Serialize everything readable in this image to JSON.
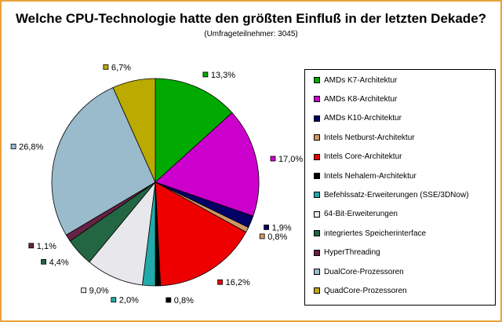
{
  "title": "Welche CPU-Technologie hatte den größten Einfluß in der letzten Dekade?",
  "subtitle": "(Umfrageteilnehmer: 3045)",
  "chart_data": {
    "type": "pie",
    "title": "Welche CPU-Technologie hatte den größten Einfluß in der letzten Dekade?",
    "subtitle": "(Umfrageteilnehmer: 3045)",
    "legend_position": "right",
    "slices": [
      {
        "name": "AMDs K7-Architektur",
        "value": 13.3,
        "label": "13,3%",
        "color": "#00aa00"
      },
      {
        "name": "AMDs K8-Architektur",
        "value": 17.0,
        "label": "17,0%",
        "color": "#cc00cc"
      },
      {
        "name": "AMDs K10-Architektur",
        "value": 1.9,
        "label": "1,9%",
        "color": "#000066"
      },
      {
        "name": "Intels Netburst-Architektur",
        "value": 0.8,
        "label": "0,8%",
        "color": "#cc9966"
      },
      {
        "name": "Intels Core-Architektur",
        "value": 16.2,
        "label": "16,2%",
        "color": "#ee0000"
      },
      {
        "name": "Intels Nehalem-Architektur",
        "value": 0.8,
        "label": "0,8%",
        "color": "#000000"
      },
      {
        "name": "Befehlssatz-Erweiterungen (SSE/3DNow)",
        "value": 2.0,
        "label": "2,0%",
        "color": "#22aaaa"
      },
      {
        "name": "64-Bit-Erweiterungen",
        "value": 9.0,
        "label": "9,0%",
        "color": "#e8e8ec"
      },
      {
        "name": "integriertes Speicherinterface",
        "value": 4.4,
        "label": "4,4%",
        "color": "#226644"
      },
      {
        "name": "HyperThreading",
        "value": 1.1,
        "label": "1,1%",
        "color": "#662244"
      },
      {
        "name": "DualCore-Prozessoren",
        "value": 26.8,
        "label": "26,8%",
        "color": "#99bbcc"
      },
      {
        "name": "QuadCore-Prozessoren",
        "value": 6.7,
        "label": "6,7%",
        "color": "#bbaa00"
      }
    ]
  }
}
